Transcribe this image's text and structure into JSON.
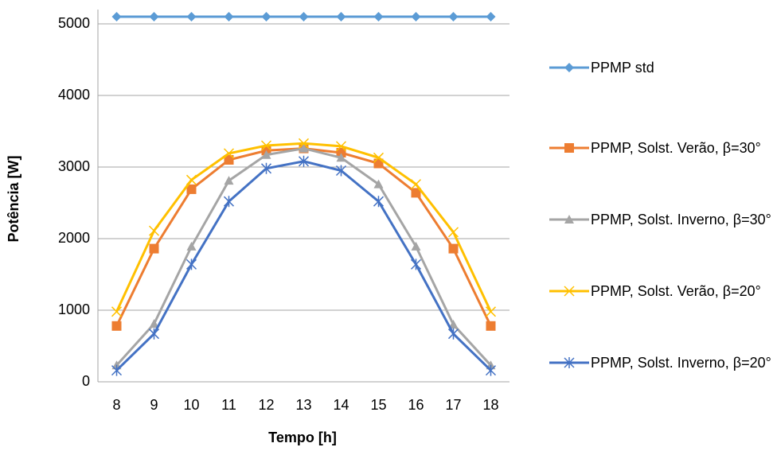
{
  "chart_data": {
    "type": "line",
    "x_label": "Tempo [h]",
    "y_label": "Potência [W]",
    "categories": [
      "8",
      "9",
      "10",
      "11",
      "12",
      "13",
      "14",
      "15",
      "16",
      "17",
      "18"
    ],
    "ylim": [
      0,
      5200
    ],
    "yticks": [
      0,
      1000,
      2000,
      3000,
      4000,
      5000
    ],
    "grid": true,
    "legend": "right",
    "series": [
      {
        "name": "PPMP std",
        "color": "#5b9bd5",
        "marker": "diamond",
        "values": [
          5100,
          5100,
          5100,
          5100,
          5100,
          5100,
          5100,
          5100,
          5100,
          5100,
          5100
        ]
      },
      {
        "name": "PPMP, Solst. Verão, β=30°",
        "color": "#ed7d31",
        "marker": "square",
        "values": [
          780,
          1860,
          2690,
          3100,
          3230,
          3260,
          3200,
          3050,
          2640,
          1860,
          780
        ]
      },
      {
        "name": "PPMP, Solst. Inverno, β=30°",
        "color": "#a5a5a5",
        "marker": "triangle",
        "values": [
          230,
          810,
          1890,
          2810,
          3170,
          3260,
          3130,
          2760,
          1890,
          800,
          230
        ]
      },
      {
        "name": "PPMP, Solst. Verão, β=20°",
        "color": "#ffc000",
        "marker": "x",
        "values": [
          980,
          2110,
          2820,
          3190,
          3300,
          3330,
          3290,
          3130,
          2760,
          2090,
          980
        ]
      },
      {
        "name": "PPMP, Solst. Inverno, β=20°",
        "color": "#4472c4",
        "marker": "asterisk",
        "values": [
          160,
          670,
          1640,
          2520,
          2980,
          3080,
          2950,
          2520,
          1640,
          670,
          160
        ]
      }
    ]
  }
}
